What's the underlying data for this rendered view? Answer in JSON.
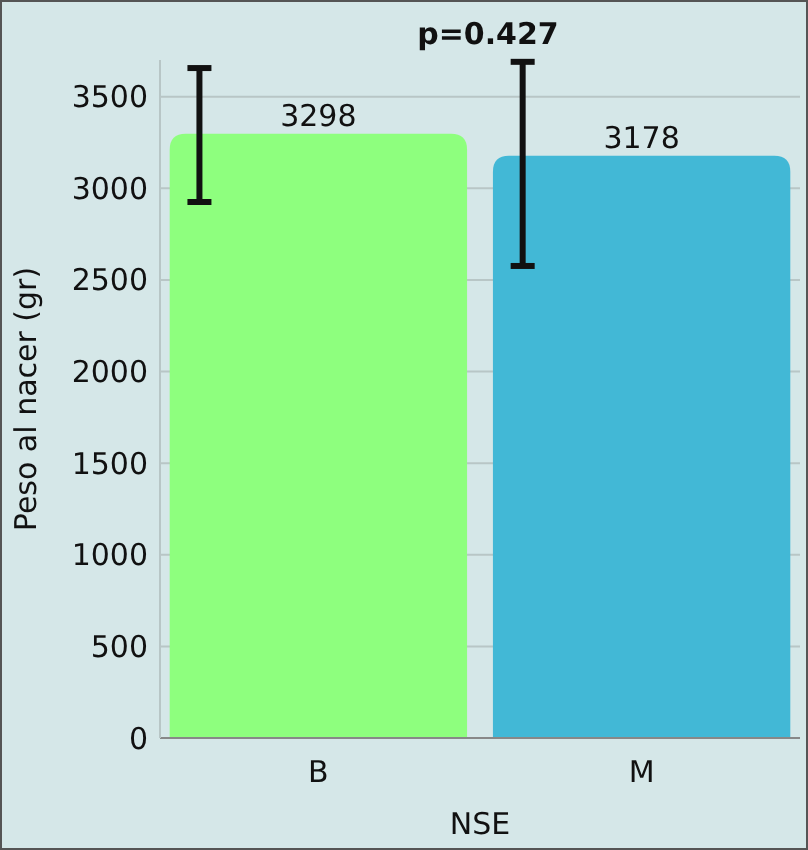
{
  "chart_data": {
    "type": "bar",
    "title": "p=0.427",
    "xlabel": "NSE",
    "ylabel": "Peso al nacer (gr)",
    "categories": [
      "B",
      "M"
    ],
    "values": [
      3298,
      3178
    ],
    "colors": [
      "#8eff7e",
      "#42b8d6"
    ],
    "errors": [
      [
        2925,
        3656
      ],
      [
        2576,
        3690
      ]
    ],
    "data_labels": true,
    "ylim": [
      0,
      3700
    ],
    "yticks": [
      0,
      500,
      1000,
      1500,
      2000,
      2500,
      3000,
      3500
    ],
    "grid": "y"
  }
}
